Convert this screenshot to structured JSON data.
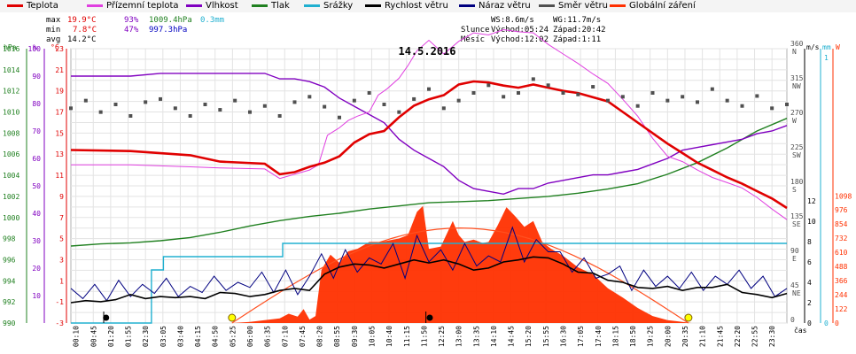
{
  "chart_data": {
    "type": "line",
    "title": "14.5.2016",
    "xlabel": "čas",
    "legend": [
      {
        "name": "Teplota",
        "color": "#e00000"
      },
      {
        "name": "Přízemní teplota",
        "color": "#e040e0"
      },
      {
        "name": "Vlhkost",
        "color": "#8000c0"
      },
      {
        "name": "Tlak",
        "color": "#208020"
      },
      {
        "name": "Srážky",
        "color": "#20b0d0"
      },
      {
        "name": "Rychlost větru",
        "color": "#000000"
      },
      {
        "name": "Náraz větru",
        "color": "#000080"
      },
      {
        "name": "Směr větru",
        "color": "#505050"
      },
      {
        "name": "Globální záření",
        "color": "#ff3000"
      }
    ],
    "stats": {
      "max_label": "max",
      "max_temp": "19.9°C",
      "max_hum": "93%",
      "max_press": "1009.4hPa",
      "max_rain": "0.3mm",
      "min_label": "min",
      "min_temp": "7.8°C",
      "min_hum": "47%",
      "min_press": "997.3hPa",
      "avg_label": "avg",
      "avg_temp": "14.2°C",
      "ws": "WS:8.6m/s",
      "wg": "WG:11.7m/s",
      "sun_label": "Slunce",
      "sun_rise": "Východ:05:24",
      "sun_set": "Západ:20:42",
      "moon_label": "Měsíc",
      "moon_rise": "Východ:12:02",
      "moon_set": "Západ:1:11"
    },
    "axes": {
      "hpa": {
        "label": "hPa",
        "ticks": [
          "990",
          "992",
          "994",
          "996",
          "998",
          "1000",
          "1002",
          "1004",
          "1006",
          "1008",
          "1010",
          "1012",
          "1014",
          "1016"
        ]
      },
      "pct": {
        "label": "%",
        "ticks": [
          "10",
          "20",
          "30",
          "40",
          "50",
          "60",
          "70",
          "80",
          "90",
          "100"
        ]
      },
      "degc": {
        "label": "°C",
        "ticks": [
          "-3",
          "-1",
          "1",
          "3",
          "5",
          "7",
          "9",
          "11",
          "13",
          "15",
          "17",
          "19",
          "21",
          "23"
        ]
      },
      "dir": {
        "ticks": [
          {
            "v": "360",
            "c": "N"
          },
          {
            "v": "315",
            "c": "NW"
          },
          {
            "v": "270",
            "c": "W"
          },
          {
            "v": "225",
            "c": "SW"
          },
          {
            "v": "180",
            "c": "S"
          },
          {
            "v": "135",
            "c": "SE"
          },
          {
            "v": "90",
            "c": "E"
          },
          {
            "v": "45",
            "c": "NE"
          },
          {
            "v": "0",
            "c": ""
          }
        ]
      },
      "ms": {
        "label": "m/s",
        "ticks": [
          "0",
          "2",
          "4",
          "6",
          "8",
          "10",
          "12"
        ]
      },
      "mm": {
        "label": "mm",
        "ticks": [
          "0",
          "1"
        ]
      },
      "w": {
        "label": "W",
        "ticks": [
          "0",
          "122",
          "244",
          "366",
          "488",
          "610",
          "732",
          "854",
          "976",
          "1098"
        ]
      },
      "time_ticks": [
        "00:10",
        "00:45",
        "01:20",
        "01:55",
        "02:30",
        "03:05",
        "03:40",
        "04:15",
        "04:50",
        "05:25",
        "06:00",
        "06:35",
        "07:10",
        "07:45",
        "08:20",
        "08:55",
        "09:30",
        "10:05",
        "10:40",
        "11:15",
        "11:50",
        "12:25",
        "13:00",
        "13:35",
        "14:10",
        "14:45",
        "15:20",
        "15:55",
        "16:30",
        "17:05",
        "17:40",
        "18:15",
        "18:50",
        "19:25",
        "20:00",
        "20:35",
        "21:10",
        "21:45",
        "22:20",
        "22:55",
        "23:30"
      ]
    },
    "series": [
      {
        "name": "Teplota",
        "unit": "°C",
        "x": [
          0,
          2,
          4,
          5,
          6.5,
          7,
          7.5,
          8,
          8.5,
          9,
          9.5,
          10,
          10.5,
          11,
          11.5,
          12,
          12.5,
          13,
          13.5,
          14,
          14.5,
          15,
          15.5,
          16,
          16.5,
          17,
          18,
          18.5,
          19,
          19.5,
          20,
          20.5,
          21,
          21.5,
          22,
          22.5,
          23,
          23.5,
          24
        ],
        "y": [
          13.4,
          13.3,
          12.9,
          12.3,
          12.1,
          11.1,
          11.3,
          11.8,
          12.2,
          12.8,
          14.1,
          14.9,
          15.2,
          16.5,
          17.6,
          18.2,
          18.6,
          19.6,
          19.9,
          19.8,
          19.5,
          19.3,
          19.6,
          19.3,
          19.0,
          18.8,
          18.0,
          17.0,
          16.0,
          15.0,
          14.0,
          13.1,
          12.2,
          11.5,
          10.8,
          10.2,
          9.5,
          8.8,
          7.9
        ]
      },
      {
        "name": "Přízemní teplota",
        "unit": "°C",
        "x": [
          0,
          2,
          4,
          5,
          6.5,
          7,
          7.5,
          8,
          8.3,
          8.6,
          9,
          9.3,
          9.6,
          10,
          10.3,
          10.6,
          11,
          11.3,
          11.6,
          12,
          12.5,
          13,
          13.5,
          14,
          14.5,
          15,
          15.5,
          16,
          16.5,
          17,
          17.5,
          18,
          18.5,
          19,
          19.5,
          20,
          20.5,
          21,
          21.5,
          22,
          22.5,
          23,
          23.5,
          24
        ],
        "y": [
          12.0,
          12.0,
          11.8,
          11.7,
          11.6,
          10.7,
          11.1,
          11.5,
          12.0,
          14.8,
          15.5,
          16.2,
          16.6,
          17.0,
          18.6,
          19.2,
          20.2,
          21.4,
          22.8,
          23.8,
          22.5,
          23.7,
          24.5,
          24.3,
          24.8,
          24.6,
          24.5,
          23.4,
          22.5,
          21.6,
          20.6,
          19.7,
          18.2,
          16.6,
          14.5,
          12.8,
          12.3,
          11.5,
          10.8,
          10.3,
          9.8,
          8.9,
          7.8,
          6.8
        ]
      },
      {
        "name": "Vlhkost",
        "unit": "%",
        "x": [
          0,
          2,
          3,
          4,
          5,
          6.5,
          7,
          7.5,
          8,
          8.5,
          9,
          9.5,
          10,
          10.5,
          11,
          11.5,
          12,
          12.5,
          13,
          13.5,
          14,
          14.5,
          15,
          15.5,
          16,
          16.5,
          17,
          17.5,
          18,
          18.5,
          19,
          19.5,
          20,
          20.5,
          21,
          21.5,
          22,
          22.5,
          23,
          23.5,
          24
        ],
        "y": [
          90,
          90,
          91,
          91,
          91,
          91,
          89,
          89,
          88,
          86,
          82,
          79,
          76,
          73,
          67,
          63,
          60,
          57,
          52,
          49,
          48,
          47,
          49,
          49,
          51,
          52,
          53,
          54,
          54,
          55,
          56,
          58,
          60,
          63,
          64,
          65,
          66,
          67,
          69,
          70,
          72
        ]
      },
      {
        "name": "Tlak",
        "unit": "hPa",
        "x": [
          0,
          1,
          2,
          3,
          4,
          5,
          6,
          7,
          8,
          9,
          10,
          11,
          12,
          13,
          14,
          15,
          16,
          17,
          18,
          19,
          20,
          21,
          22,
          23,
          24
        ],
        "y": [
          997.3,
          997.5,
          997.6,
          997.8,
          998.1,
          998.6,
          999.2,
          999.7,
          1000.1,
          1000.4,
          1000.8,
          1001.1,
          1001.4,
          1001.5,
          1001.6,
          1001.8,
          1002.0,
          1002.3,
          1002.7,
          1003.2,
          1004.1,
          1005.2,
          1006.6,
          1008.2,
          1009.4
        ]
      },
      {
        "name": "Srážky",
        "unit": "mm",
        "x": [
          0,
          2.7,
          2.7,
          3.1,
          3.1,
          7.1,
          7.1,
          24
        ],
        "y": [
          0,
          0,
          0.2,
          0.2,
          0.25,
          0.25,
          0.3,
          0.3
        ]
      },
      {
        "name": "Globální záření",
        "unit": "W",
        "x": [
          0,
          5.4,
          6,
          6.5,
          7,
          7.3,
          7.6,
          7.8,
          8,
          8.2,
          8.4,
          8.7,
          9,
          9.3,
          9.6,
          10,
          10.4,
          10.8,
          11,
          11.3,
          11.6,
          11.8,
          12,
          12.4,
          12.8,
          13,
          13.2,
          13.5,
          13.8,
          14,
          14.3,
          14.6,
          14.9,
          15.2,
          15.5,
          15.8,
          16.1,
          16.5,
          17,
          17.5,
          18,
          18.5,
          19,
          19.5,
          20,
          20.5,
          20.8,
          21
        ],
        "y": [
          0,
          0,
          10,
          25,
          40,
          80,
          55,
          120,
          30,
          60,
          460,
          590,
          520,
          620,
          640,
          700,
          700,
          720,
          730,
          760,
          960,
          1010,
          640,
          660,
          880,
          760,
          700,
          720,
          690,
          700,
          840,
          1000,
          920,
          830,
          880,
          700,
          640,
          580,
          480,
          420,
          300,
          220,
          130,
          60,
          25,
          10,
          0,
          0
        ]
      },
      {
        "name": "Rychlost větru",
        "unit": "m/s",
        "x": [
          0,
          0.5,
          1,
          1.5,
          2,
          2.5,
          3,
          3.5,
          4,
          4.5,
          5,
          5.5,
          6,
          6.5,
          7,
          7.5,
          8,
          8.5,
          9,
          9.5,
          10,
          10.5,
          11,
          11.5,
          12,
          12.5,
          13,
          13.5,
          14,
          14.5,
          15,
          15.5,
          16,
          16.5,
          17,
          17.5,
          18,
          18.5,
          19,
          19.5,
          20,
          20.5,
          21,
          21.5,
          22,
          22.5,
          23,
          23.5,
          24
        ],
        "y": [
          2.0,
          2.2,
          2.1,
          2.3,
          2.8,
          2.4,
          2.6,
          2.5,
          2.6,
          2.4,
          3.0,
          2.9,
          2.6,
          2.8,
          3.2,
          3.4,
          3.2,
          4.8,
          5.5,
          5.8,
          5.7,
          5.4,
          5.8,
          6.2,
          5.9,
          6.2,
          5.8,
          5.2,
          5.4,
          6.0,
          6.2,
          6.5,
          6.4,
          5.8,
          5.0,
          4.9,
          4.2,
          4.0,
          3.5,
          3.4,
          3.6,
          3.2,
          3.5,
          3.5,
          3.8,
          3.0,
          2.8,
          2.5,
          2.9
        ]
      },
      {
        "name": "Náraz větru",
        "unit": "m/s",
        "x": [
          0,
          0.4,
          0.8,
          1.2,
          1.6,
          2,
          2.4,
          2.8,
          3.2,
          3.6,
          4,
          4.4,
          4.8,
          5.2,
          5.6,
          6,
          6.4,
          6.8,
          7.2,
          7.6,
          8,
          8.4,
          8.8,
          9.2,
          9.6,
          10,
          10.4,
          10.8,
          11.2,
          11.6,
          12,
          12.4,
          12.8,
          13.2,
          13.6,
          14,
          14.4,
          14.8,
          15.2,
          15.6,
          16,
          16.4,
          16.8,
          17.2,
          17.6,
          18,
          18.4,
          18.8,
          19.2,
          19.6,
          20,
          20.4,
          20.8,
          21.2,
          21.6,
          22,
          22.4,
          22.8,
          23.2,
          23.6,
          24
        ],
        "y": [
          3.4,
          2.4,
          3.8,
          2.2,
          4.2,
          2.6,
          3.8,
          2.9,
          4.4,
          2.6,
          3.6,
          3.0,
          4.6,
          3.2,
          4.0,
          3.5,
          5.0,
          3.0,
          5.2,
          2.8,
          4.6,
          6.8,
          4.4,
          7.2,
          5.0,
          6.4,
          5.8,
          7.8,
          4.4,
          8.6,
          6.0,
          7.2,
          5.2,
          7.8,
          5.6,
          6.6,
          6.0,
          9.4,
          6.0,
          8.2,
          7.0,
          7.0,
          5.0,
          6.4,
          4.4,
          4.8,
          5.6,
          3.2,
          5.2,
          3.6,
          4.6,
          3.4,
          5.0,
          3.2,
          4.6,
          3.8,
          5.2,
          3.4,
          4.6,
          2.6,
          3.4
        ]
      },
      {
        "name": "Směr větru",
        "unit": "°",
        "x": [
          0,
          0.5,
          1,
          1.5,
          2,
          2.5,
          3,
          3.5,
          4,
          4.5,
          5,
          5.5,
          6,
          6.5,
          7,
          7.5,
          8,
          8.5,
          9,
          9.5,
          10,
          10.5,
          11,
          11.5,
          12,
          12.5,
          13,
          13.5,
          14,
          14.5,
          15,
          15.5,
          16,
          16.5,
          17,
          17.5,
          18,
          18.5,
          19,
          19.5,
          20,
          20.5,
          21,
          21.5,
          22,
          22.5,
          23,
          23.5,
          24
        ],
        "y": [
          280,
          290,
          275,
          285,
          270,
          288,
          292,
          280,
          270,
          285,
          278,
          290,
          275,
          283,
          270,
          288,
          295,
          282,
          268,
          290,
          300,
          285,
          275,
          292,
          305,
          280,
          290,
          300,
          310,
          295,
          300,
          318,
          310,
          300,
          298,
          308,
          290,
          295,
          283,
          300,
          290,
          295,
          288,
          305,
          290,
          283,
          296,
          280,
          285
        ]
      }
    ],
    "markers": {
      "sunrise": 5.4,
      "sunset": 20.7,
      "moonrise": 12.03,
      "moonset": 1.18,
      "rain_events": [
        1.1,
        11.9
      ]
    }
  }
}
